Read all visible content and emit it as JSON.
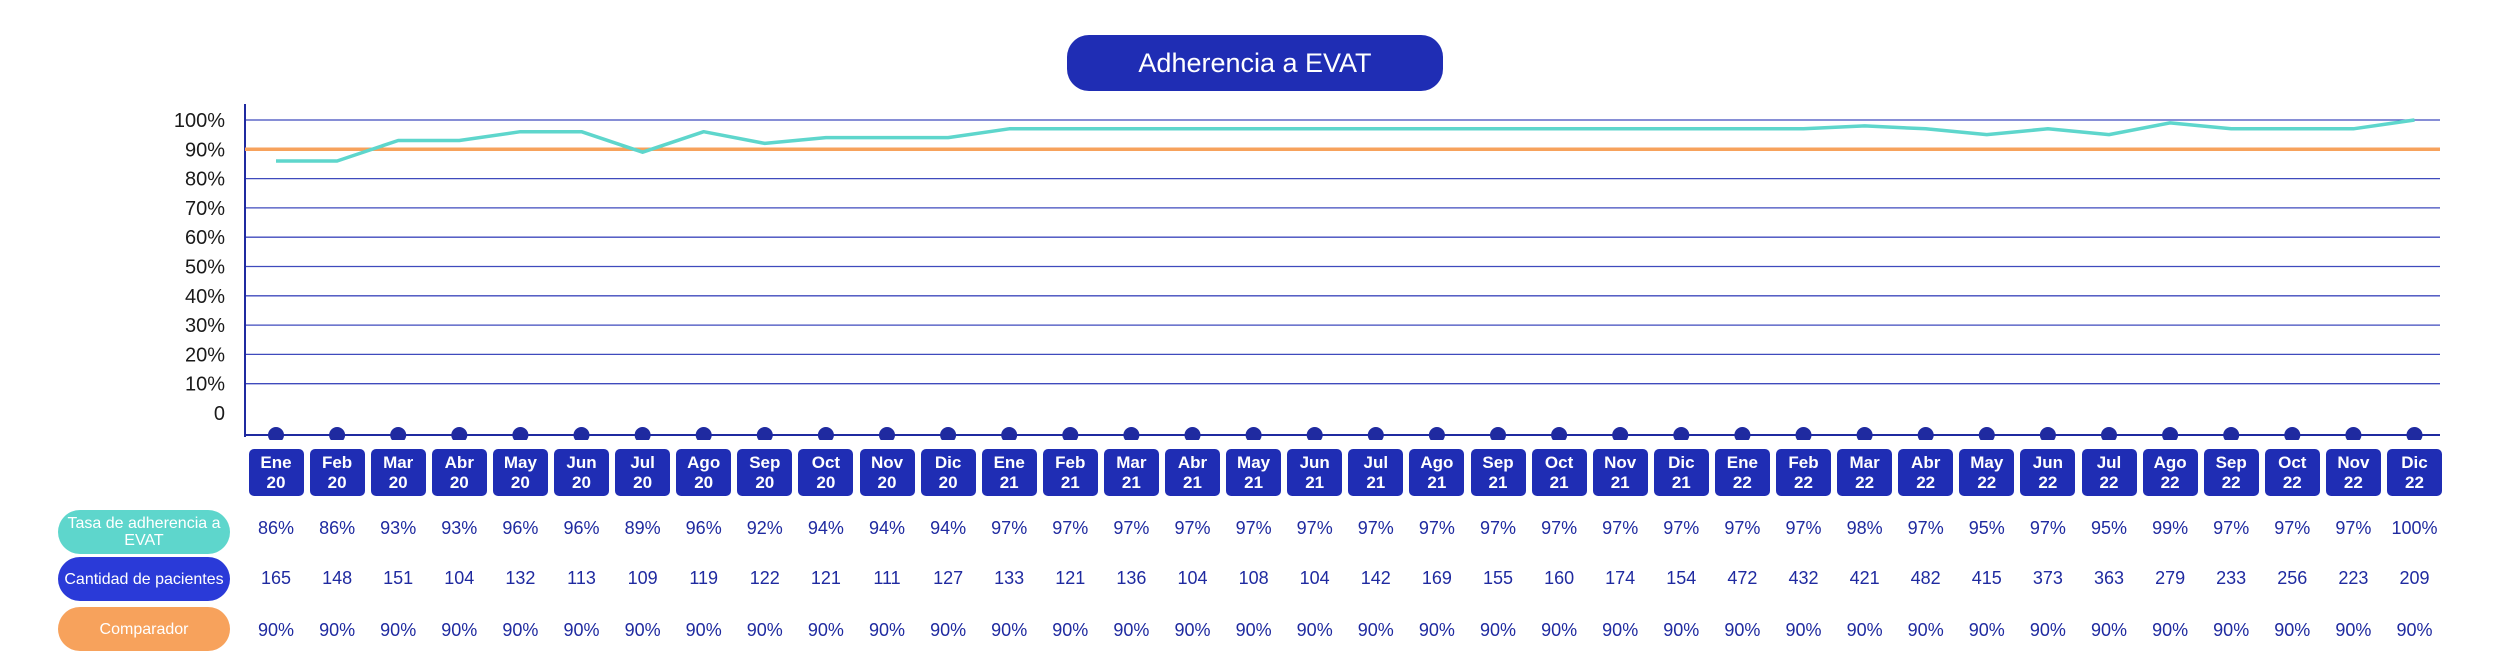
{
  "title": "Adherencia a EVAT",
  "colors": {
    "title_bg": "#1f2db4",
    "rate_line": "#5ed6cc",
    "comparator_line": "#f7a25c",
    "axis": "#1f2aa0",
    "grid": "#3f4abd",
    "month_box": "#1f2db4",
    "marker": "#1f2aa0",
    "table_text": "#1f2aa0"
  },
  "row_labels": {
    "rate": "Tasa de adherencia a EVAT",
    "patients": "Cantidad de pacientes",
    "comparator": "Comparador"
  },
  "chart_data": {
    "type": "line",
    "title": "Adherencia a EVAT",
    "yticks": [
      "0",
      "10%",
      "20%",
      "30%",
      "40%",
      "50%",
      "60%",
      "70%",
      "80%",
      "90%",
      "100%"
    ],
    "ylim": [
      0,
      100
    ],
    "grid": true,
    "categories": [
      [
        "Ene",
        "20"
      ],
      [
        "Feb",
        "20"
      ],
      [
        "Mar",
        "20"
      ],
      [
        "Abr",
        "20"
      ],
      [
        "May",
        "20"
      ],
      [
        "Jun",
        "20"
      ],
      [
        "Jul",
        "20"
      ],
      [
        "Ago",
        "20"
      ],
      [
        "Sep",
        "20"
      ],
      [
        "Oct",
        "20"
      ],
      [
        "Nov",
        "20"
      ],
      [
        "Dic",
        "20"
      ],
      [
        "Ene",
        "21"
      ],
      [
        "Feb",
        "21"
      ],
      [
        "Mar",
        "21"
      ],
      [
        "Abr",
        "21"
      ],
      [
        "May",
        "21"
      ],
      [
        "Jun",
        "21"
      ],
      [
        "Jul",
        "21"
      ],
      [
        "Ago",
        "21"
      ],
      [
        "Sep",
        "21"
      ],
      [
        "Oct",
        "21"
      ],
      [
        "Nov",
        "21"
      ],
      [
        "Dic",
        "21"
      ],
      [
        "Ene",
        "22"
      ],
      [
        "Feb",
        "22"
      ],
      [
        "Mar",
        "22"
      ],
      [
        "Abr",
        "22"
      ],
      [
        "May",
        "22"
      ],
      [
        "Jun",
        "22"
      ],
      [
        "Jul",
        "22"
      ],
      [
        "Ago",
        "22"
      ],
      [
        "Sep",
        "22"
      ],
      [
        "Oct",
        "22"
      ],
      [
        "Nov",
        "22"
      ],
      [
        "Dic",
        "22"
      ]
    ],
    "series": [
      {
        "name": "Tasa de adherencia a EVAT",
        "values": [
          86,
          86,
          93,
          93,
          96,
          96,
          89,
          96,
          92,
          94,
          94,
          94,
          97,
          97,
          97,
          97,
          97,
          97,
          97,
          97,
          97,
          97,
          97,
          97,
          97,
          97,
          98,
          97,
          95,
          97,
          95,
          99,
          97,
          97,
          97,
          100
        ],
        "labels": [
          "86%",
          "86%",
          "93%",
          "93%",
          "96%",
          "96%",
          "89%",
          "96%",
          "92%",
          "94%",
          "94%",
          "94%",
          "97%",
          "97%",
          "97%",
          "97%",
          "97%",
          "97%",
          "97%",
          "97%",
          "97%",
          "97%",
          "97%",
          "97%",
          "97%",
          "97%",
          "98%",
          "97%",
          "95%",
          "97%",
          "95%",
          "99%",
          "97%",
          "97%",
          "97%",
          "100%"
        ]
      },
      {
        "name": "Comparador",
        "values": [
          90,
          90,
          90,
          90,
          90,
          90,
          90,
          90,
          90,
          90,
          90,
          90,
          90,
          90,
          90,
          90,
          90,
          90,
          90,
          90,
          90,
          90,
          90,
          90,
          90,
          90,
          90,
          90,
          90,
          90,
          90,
          90,
          90,
          90,
          90,
          90
        ],
        "labels": [
          "90%",
          "90%",
          "90%",
          "90%",
          "90%",
          "90%",
          "90%",
          "90%",
          "90%",
          "90%",
          "90%",
          "90%",
          "90%",
          "90%",
          "90%",
          "90%",
          "90%",
          "90%",
          "90%",
          "90%",
          "90%",
          "90%",
          "90%",
          "90%",
          "90%",
          "90%",
          "90%",
          "90%",
          "90%",
          "90%",
          "90%",
          "90%",
          "90%",
          "90%",
          "90%",
          "90%"
        ]
      }
    ],
    "patients": [
      "165",
      "148",
      "151",
      "104",
      "132",
      "113",
      "109",
      "119",
      "122",
      "121",
      "111",
      "127",
      "133",
      "121",
      "136",
      "104",
      "108",
      "104",
      "142",
      "169",
      "155",
      "160",
      "174",
      "154",
      "472",
      "432",
      "421",
      "482",
      "415",
      "373",
      "363",
      "279",
      "233",
      "256",
      "223",
      "209"
    ]
  }
}
